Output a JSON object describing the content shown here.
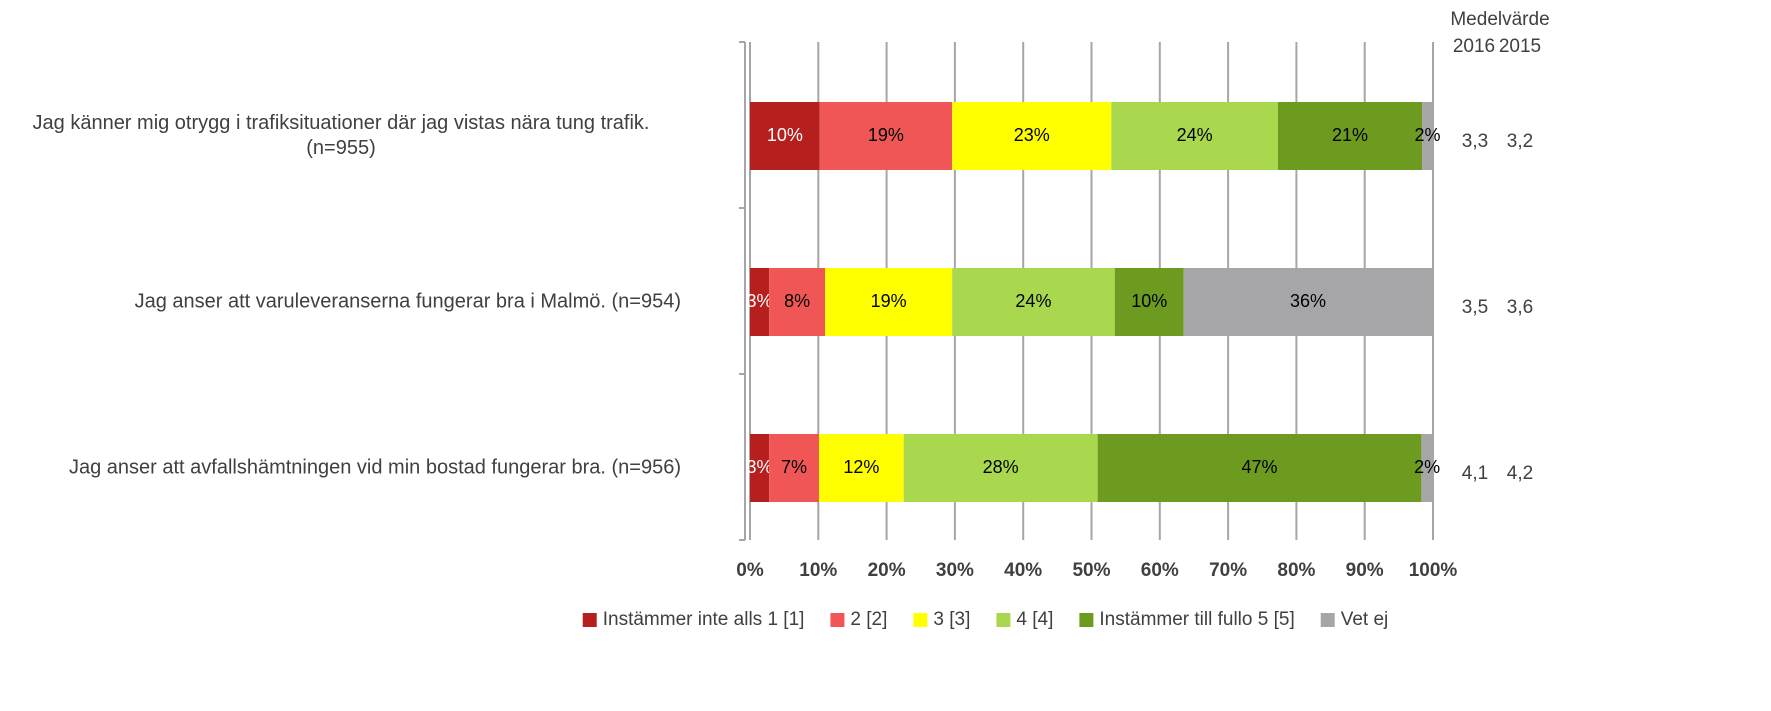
{
  "chart_data": {
    "type": "stacked_barh",
    "categories": [
      "Jag känner mig otrygg i trafiksituationer där jag vistas nära tung trafik. (n=955)",
      "Jag anser att varuleveranserna fungerar bra i Malmö. (n=954)",
      "Jag anser att avfallshämtningen vid min bostad fungerar bra. (n=956)"
    ],
    "series": [
      {
        "name": "Instämmer inte alls 1 [1]",
        "color": "#b5201f",
        "values": [
          10.2,
          2.8,
          2.8
        ],
        "value_labels": [
          "10%",
          "3%",
          "3%"
        ]
      },
      {
        "name": "2 [2]",
        "color": "#f05656",
        "values": [
          19.4,
          8.2,
          7.3
        ],
        "value_labels": [
          "19%",
          "8%",
          "7%"
        ]
      },
      {
        "name": "3 [3]",
        "color": "#ffff00",
        "values": [
          23.3,
          18.6,
          12.4
        ],
        "value_labels": [
          "23%",
          "19%",
          "12%"
        ]
      },
      {
        "name": "4 [4]",
        "color": "#a9d84f",
        "values": [
          24.4,
          23.8,
          28.4
        ],
        "value_labels": [
          "24%",
          "24%",
          "28%"
        ]
      },
      {
        "name": "Instämmer till fullo 5 [5]",
        "color": "#6c9b1f",
        "values": [
          21.1,
          10.1,
          47.4
        ],
        "value_labels": [
          "21%",
          "10%",
          "47%"
        ]
      },
      {
        "name": "Vet ej",
        "color": "#a6a6a8",
        "values": [
          1.6,
          36.4,
          1.7
        ],
        "value_labels": [
          "2%",
          "36%",
          "2%"
        ]
      }
    ],
    "xlim": [
      0,
      100
    ],
    "xticks": [
      {
        "value": 0,
        "label": "0%"
      },
      {
        "value": 10,
        "label": "10%"
      },
      {
        "value": 20,
        "label": "20%"
      },
      {
        "value": 30,
        "label": "30%"
      },
      {
        "value": 40,
        "label": "40%"
      },
      {
        "value": 50,
        "label": "50%"
      },
      {
        "value": 60,
        "label": "60%"
      },
      {
        "value": 70,
        "label": "70%"
      },
      {
        "value": 80,
        "label": "80%"
      },
      {
        "value": 90,
        "label": "90%"
      },
      {
        "value": 100,
        "label": "100%"
      }
    ],
    "grid": true,
    "legend": "bottom",
    "mean_header": "Medelvärde",
    "mean_years": [
      "2016",
      "2015"
    ],
    "means": [
      [
        "3,3",
        "3,2"
      ],
      [
        "3,5",
        "3,6"
      ],
      [
        "4,1",
        "4,2"
      ]
    ]
  }
}
